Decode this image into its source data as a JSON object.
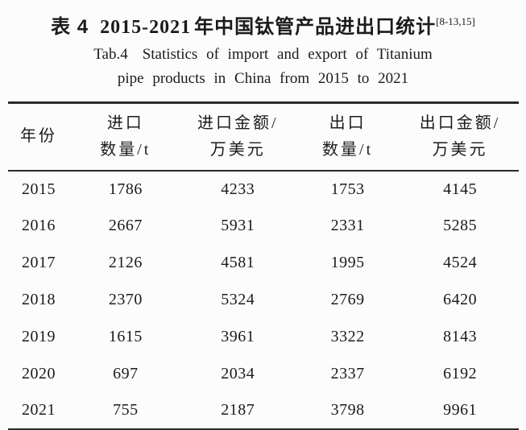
{
  "colors": {
    "background": "#fcfcfc",
    "text": "#1b1b1b",
    "rule": "#2b2b2b"
  },
  "title": {
    "zh_label": "表 4",
    "zh_years": "2015-2021",
    "zh_rest": "年中国钛管产品进出口统计",
    "citation": "[8-13,15]",
    "en_label": "Tab.4",
    "en_line1": "Statistics of import and export of Titanium",
    "en_line2": "pipe products in China from 2015 to 2021"
  },
  "table": {
    "headers": [
      {
        "line1": "年份",
        "line2": ""
      },
      {
        "line1": "进口",
        "line2": "数量/t"
      },
      {
        "line1": "进口金额/",
        "line2": "万美元"
      },
      {
        "line1": "出口",
        "line2": "数量/t"
      },
      {
        "line1": "出口金额/",
        "line2": "万美元"
      }
    ],
    "rows": [
      [
        "2015",
        "1786",
        "4233",
        "1753",
        "4145"
      ],
      [
        "2016",
        "2667",
        "5931",
        "2331",
        "5285"
      ],
      [
        "2017",
        "2126",
        "4581",
        "1995",
        "4524"
      ],
      [
        "2018",
        "2370",
        "5324",
        "2769",
        "6420"
      ],
      [
        "2019",
        "1615",
        "3961",
        "3322",
        "8143"
      ],
      [
        "2020",
        "697",
        "2034",
        "2337",
        "6192"
      ],
      [
        "2021",
        "755",
        "2187",
        "3798",
        "9961"
      ]
    ]
  }
}
